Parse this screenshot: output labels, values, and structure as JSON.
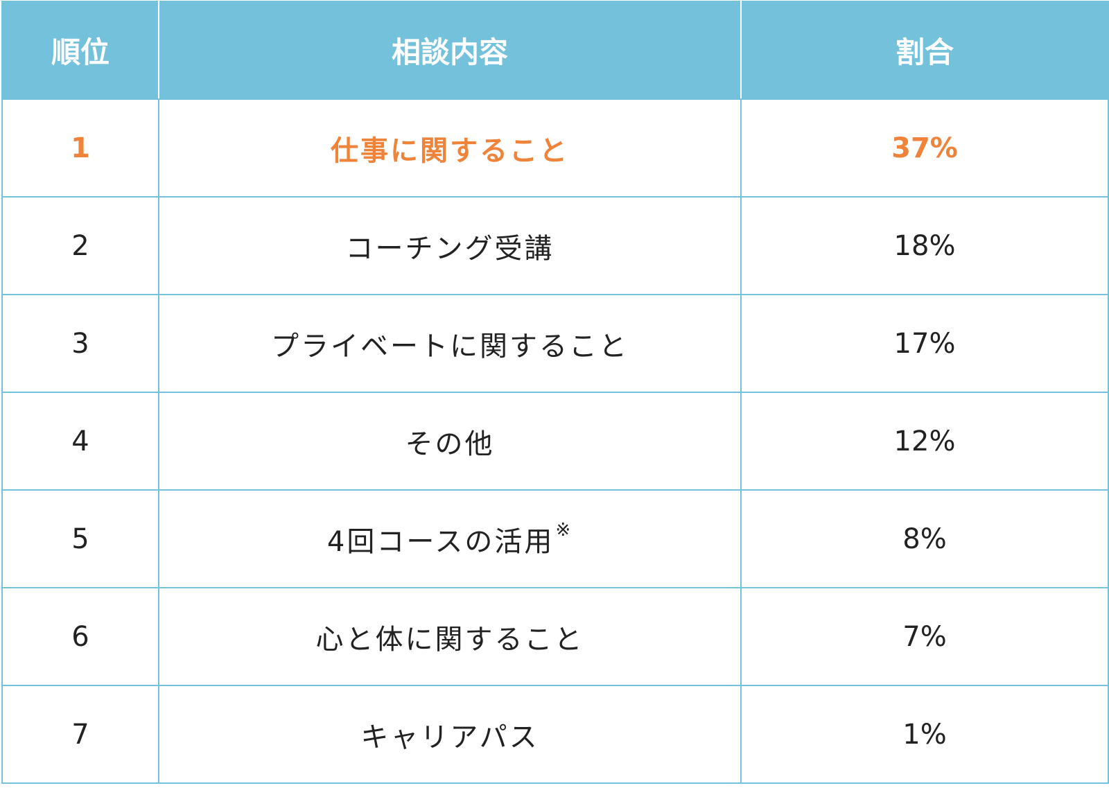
{
  "colors": {
    "header_bg": "#74c1db",
    "header_text": "#ffffff",
    "border": "#74c1db",
    "highlight": "#ee8339",
    "body_text": "#222222"
  },
  "chart_data": {
    "type": "table",
    "columns": [
      "順位",
      "相談内容",
      "割合"
    ],
    "rows": [
      {
        "rank": "1",
        "content": "仕事に関すること",
        "share": "37%",
        "highlight": true
      },
      {
        "rank": "2",
        "content": "コーチング受講",
        "share": "18%"
      },
      {
        "rank": "3",
        "content": "プライベートに関すること",
        "share": "17%"
      },
      {
        "rank": "4",
        "content": "その他",
        "share": "12%"
      },
      {
        "rank": "5",
        "content": "4回コースの活用",
        "note": "※",
        "share": "8%"
      },
      {
        "rank": "6",
        "content": "心と体に関すること",
        "share": "7%"
      },
      {
        "rank": "7",
        "content": "キャリアパス",
        "share": "1%"
      }
    ]
  }
}
